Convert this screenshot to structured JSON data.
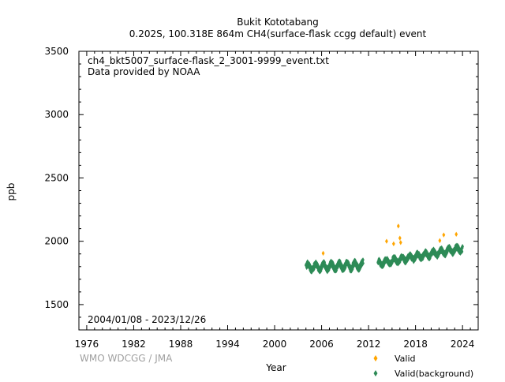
{
  "chart_data": {
    "type": "scatter",
    "title_line1": "Bukit Kototabang",
    "title_line2": "0.202S, 100.318E 864m    CH4(surface-flask ccgg default) event",
    "annotation_file": "ch4_bkt5007_surface-flask_2_3001-9999_event.txt",
    "annotation_provider": "Data provided by NOAA",
    "date_range": "2004/01/08 - 2023/12/26",
    "xlabel": "Year",
    "ylabel": "ppb",
    "credit": "WMO WDCGG / JMA",
    "xlim": [
      1975,
      2026
    ],
    "ylim": [
      1300,
      3500
    ],
    "xticks": [
      "1976",
      "1982",
      "1988",
      "1994",
      "2000",
      "2006",
      "2012",
      "2018",
      "2024"
    ],
    "yticks": [
      "1500",
      "2000",
      "2500",
      "3000",
      "3500"
    ],
    "legend_position": "bottom-right",
    "series": [
      {
        "name": "Valid",
        "color": "#FFA500",
        "marker": "diamond",
        "x": [
          2006.2,
          2014.3,
          2015.2,
          2015.8,
          2016.0,
          2016.1,
          2021.1,
          2021.6,
          2023.2
        ],
        "y": [
          1905,
          2000,
          1980,
          2120,
          2025,
          1990,
          2005,
          2050,
          2055
        ]
      },
      {
        "name": "Valid(background)",
        "color": "#2E8B57",
        "marker": "diamond",
        "segments": [
          {
            "x_start": 2004.0,
            "x_end": 2011.3,
            "y_base": 1795,
            "y_trend": 2.0,
            "y_amp": 25,
            "y_jitter": 20,
            "count": 520
          },
          {
            "x_start": 2013.2,
            "x_end": 2024.0,
            "y_base": 1825,
            "y_trend": 11.0,
            "y_amp": 20,
            "y_jitter": 18,
            "count": 700
          }
        ]
      }
    ]
  }
}
